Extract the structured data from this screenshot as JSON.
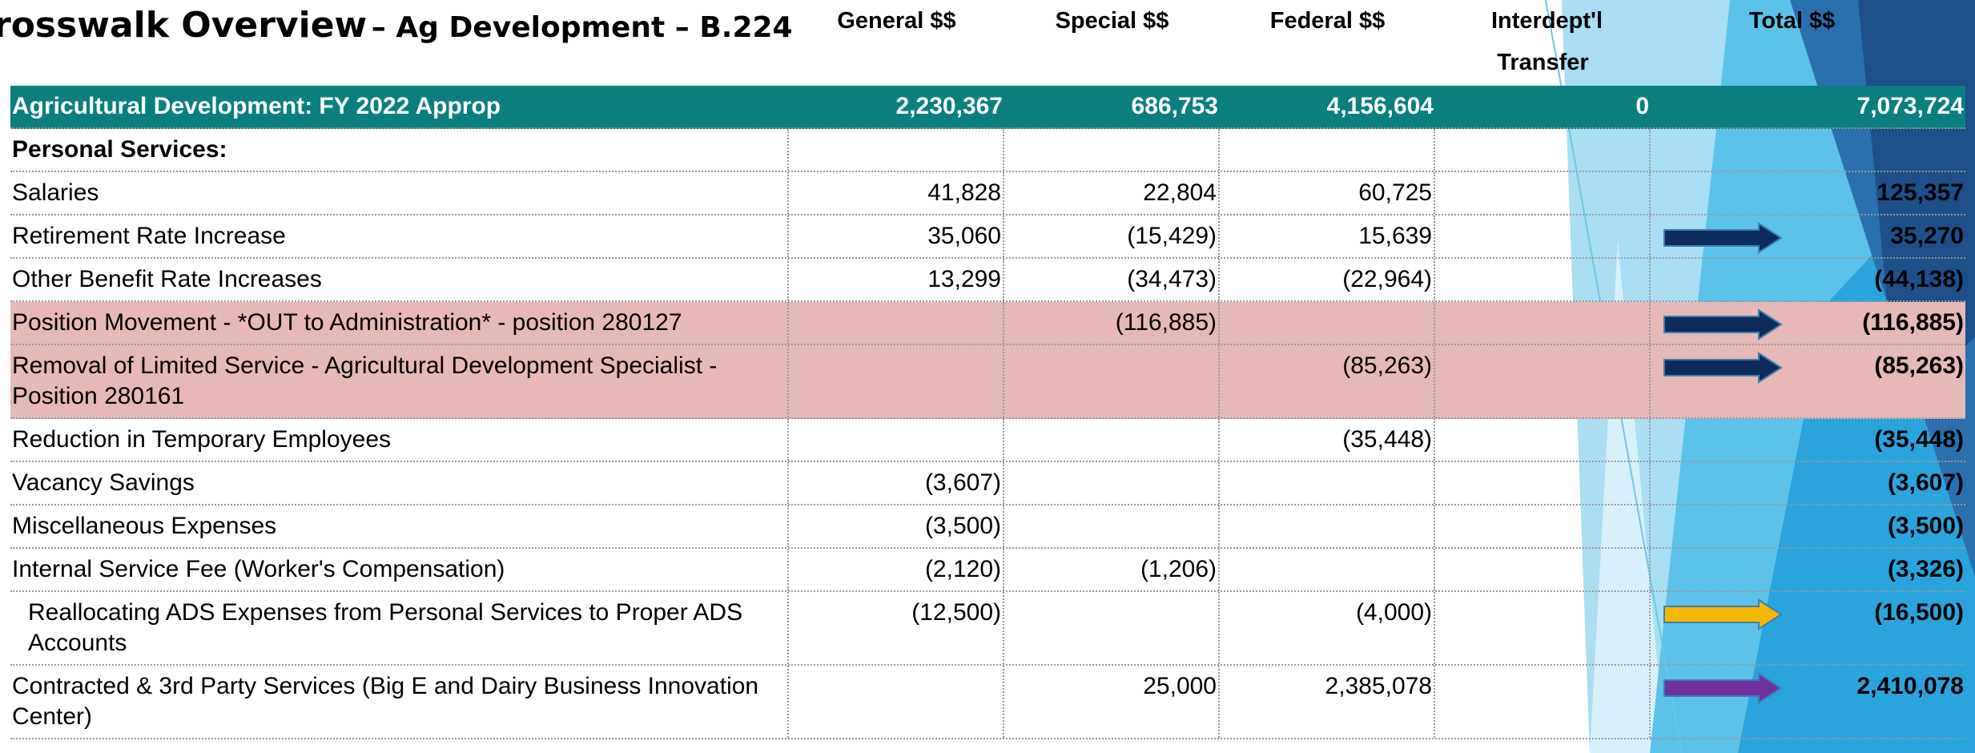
{
  "header": {
    "title_main": "rosswalk Overview",
    "title_sub": "– Ag Development – B.224"
  },
  "table": {
    "columns": [
      "General $$",
      "Special $$",
      "Federal $$",
      "Interdept'l Transfer $$",
      "Total $$"
    ],
    "summary": {
      "label": "Agricultural Development: FY 2022 Approp",
      "values": [
        "2,230,367",
        "686,753",
        "4,156,604",
        "0",
        "7,073,724"
      ]
    },
    "rows": [
      {
        "label": "Personal Services:",
        "bold": true,
        "values": [
          null,
          null,
          null,
          null,
          null
        ]
      },
      {
        "label": "Salaries",
        "values": [
          "41,828",
          "22,804",
          "60,725",
          null,
          "125,357"
        ]
      },
      {
        "label": "Retirement Rate Increase",
        "values": [
          "35,060",
          "(15,429)",
          "15,639",
          null,
          "35,270"
        ],
        "arrow": "#0d2b5c"
      },
      {
        "label": "Other Benefit Rate Increases",
        "values": [
          "13,299",
          "(34,473)",
          "(22,964)",
          null,
          "(44,138)"
        ]
      },
      {
        "label": "Position Movement - *OUT to Administration* - position 280127",
        "highlight": "#e6b8b7",
        "values": [
          null,
          "(116,885)",
          null,
          null,
          "(116,885)"
        ],
        "arrow": "#0d2b5c"
      },
      {
        "label": "Removal of Limited Service - Agricultural Development Specialist - Position 280161",
        "highlight": "#e6b8b7",
        "values": [
          null,
          null,
          "(85,263)",
          null,
          "(85,263)"
        ],
        "arrow": "#0d2b5c"
      },
      {
        "label": "Reduction in Temporary Employees",
        "values": [
          null,
          null,
          "(35,448)",
          null,
          "(35,448)"
        ]
      },
      {
        "label": "Vacancy Savings",
        "values": [
          "(3,607)",
          null,
          null,
          null,
          "(3,607)"
        ]
      },
      {
        "label": "Miscellaneous Expenses",
        "values": [
          "(3,500)",
          null,
          null,
          null,
          "(3,500)"
        ]
      },
      {
        "label": "Internal Service Fee (Worker's Compensation)",
        "values": [
          "(2,120)",
          "(1,206)",
          null,
          null,
          "(3,326)"
        ]
      },
      {
        "label": "Reallocating ADS Expenses from Personal Services to Proper ADS Accounts",
        "indent": true,
        "values": [
          "(12,500)",
          null,
          "(4,000)",
          null,
          "(16,500)"
        ],
        "arrow": "#f5b800"
      },
      {
        "label": "Contracted & 3rd Party Services (Big E and Dairy Business Innovation Center)",
        "values": [
          null,
          "25,000",
          "2,385,078",
          null,
          "2,410,078"
        ],
        "arrow": "#7030a0"
      }
    ]
  }
}
